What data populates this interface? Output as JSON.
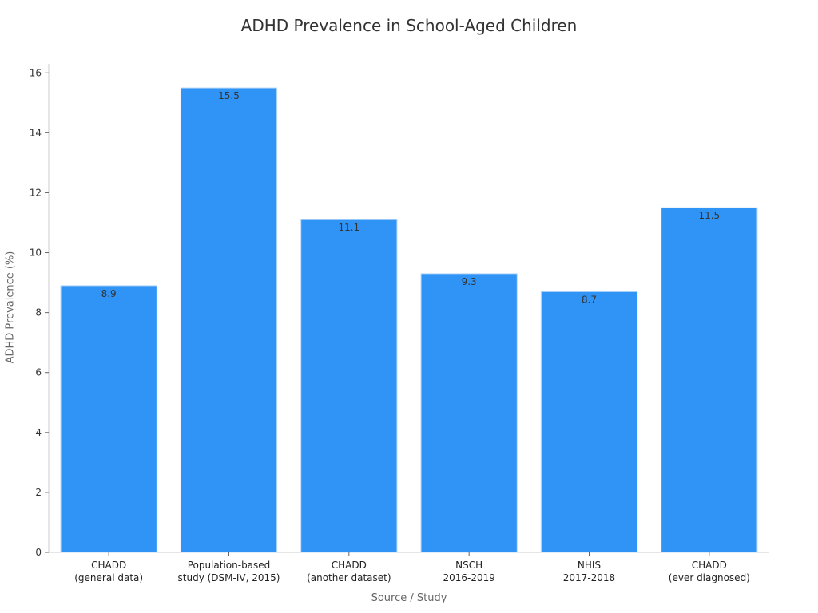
{
  "chart_data": {
    "type": "bar",
    "title": "ADHD Prevalence in School-Aged Children",
    "xlabel": "Source / Study",
    "ylabel": "ADHD Prevalence (%)",
    "categories": [
      [
        "CHADD",
        "(general data)"
      ],
      [
        "Population-based",
        "study (DSM-IV, 2015)"
      ],
      [
        "CHADD",
        "(another dataset)"
      ],
      [
        "NSCH",
        "2016-2019"
      ],
      [
        "NHIS",
        "2017-2018"
      ],
      [
        "CHADD",
        "(ever diagnosed)"
      ]
    ],
    "values": [
      8.9,
      15.5,
      11.1,
      9.3,
      8.7,
      11.5
    ],
    "value_labels": [
      "8.9",
      "15.5",
      "11.1",
      "9.3",
      "8.7",
      "11.5"
    ],
    "yticks": [
      0,
      2,
      4,
      6,
      8,
      10,
      12,
      14,
      16
    ],
    "ylim": [
      0,
      16.3
    ],
    "grid": false,
    "colors": {
      "bar": "#3094f7",
      "bar_edge": "#bcd9f7",
      "axis": "#cccccc",
      "tick": "#666666"
    }
  }
}
